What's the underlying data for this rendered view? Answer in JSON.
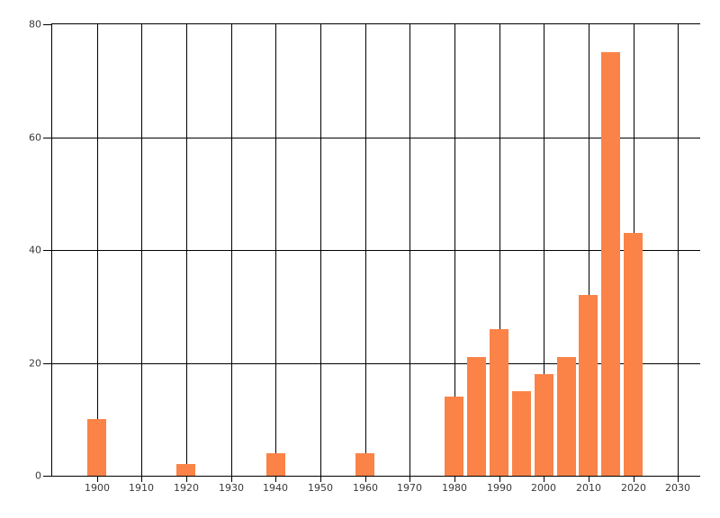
{
  "chart_data": {
    "type": "bar",
    "title": "",
    "xlabel": "",
    "ylabel": "",
    "x": [
      1900,
      1920,
      1940,
      1960,
      1980,
      1985,
      1990,
      1995,
      2000,
      2005,
      2010,
      2015,
      2020
    ],
    "values": [
      10,
      2,
      4,
      4,
      14,
      21,
      26,
      15,
      18,
      21,
      32,
      75,
      43
    ],
    "xlim": [
      1890,
      2035
    ],
    "ylim": [
      0,
      80
    ],
    "x_ticks": [
      1900,
      1910,
      1920,
      1930,
      1940,
      1950,
      1960,
      1970,
      1980,
      1990,
      2000,
      2010,
      2020,
      2030
    ],
    "x_tick_labels": [
      "1900",
      "1910",
      "1920",
      "1930",
      "1940",
      "1950",
      "1960",
      "1970",
      "1980",
      "1990",
      "2000",
      "2010",
      "2020",
      "2030"
    ],
    "y_ticks": [
      0,
      20,
      40,
      60,
      80
    ],
    "y_tick_labels": [
      "0",
      "20",
      "40",
      "60",
      "80"
    ],
    "grid": "on",
    "legend": "none",
    "colors": {
      "bar": "#FB8347",
      "grid": "#000000",
      "axis": "#000000",
      "tick_label": "#3A3A3A",
      "background": "#FFFFFF"
    }
  }
}
